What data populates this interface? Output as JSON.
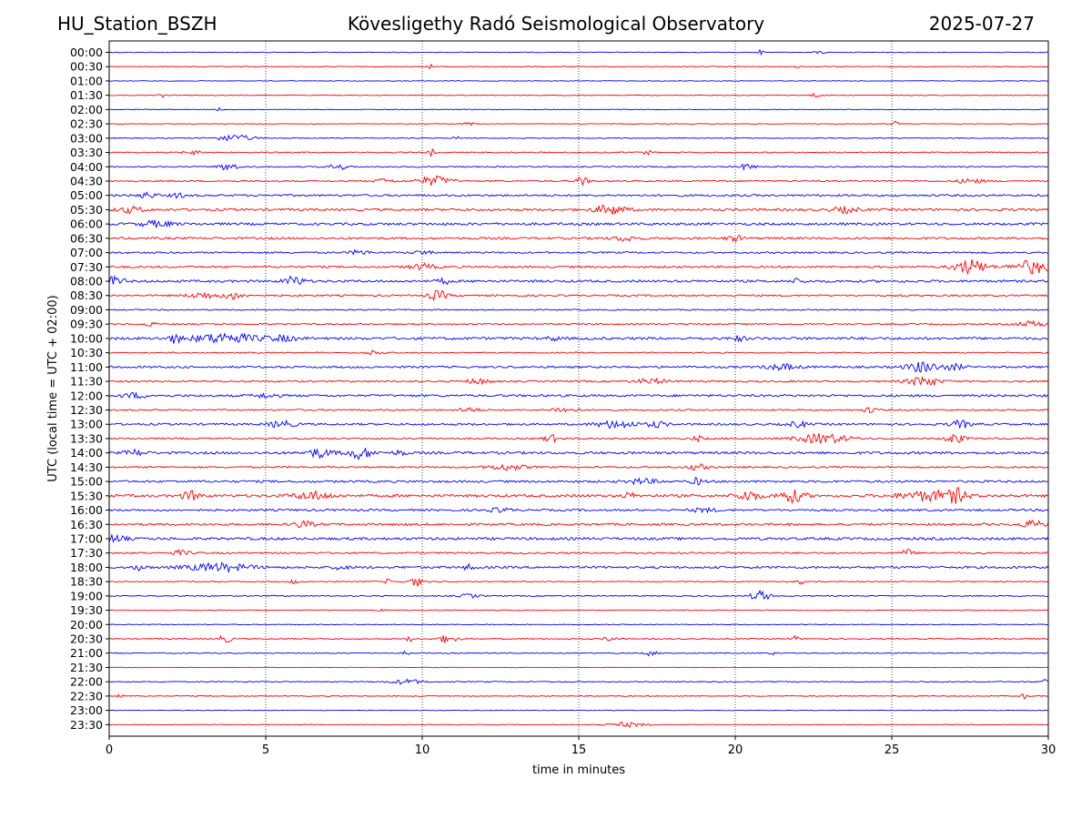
{
  "header": {
    "station": "HU_Station_BSZH",
    "title": "Kövesligethy Radó Seismological Observatory",
    "date": "2025-07-27"
  },
  "chart_data": {
    "type": "line",
    "title": "Kövesligethy Radó Seismological Observatory",
    "xlabel": "time in minutes",
    "ylabel": "UTC (local time = UTC + 02:00)",
    "xlim": [
      0,
      30
    ],
    "x_ticks": [
      0,
      5,
      10,
      15,
      20,
      25,
      30
    ],
    "grid": "vertical dotted lines at 5, 10, 15, 20, 25 minutes",
    "colors": {
      "even_row": "#0000ff",
      "odd_row": "#ff0000"
    },
    "rows": [
      {
        "label": "00:00",
        "noise": 0.12,
        "events": [
          {
            "t": 20.8,
            "a": 0.5,
            "w": 0.1
          },
          {
            "t": 22.7,
            "a": 0.3,
            "w": 0.2
          }
        ]
      },
      {
        "label": "00:30",
        "noise": 0.15,
        "events": [
          {
            "t": 10.3,
            "a": 0.5,
            "w": 0.1
          },
          {
            "t": 22.0,
            "a": 0.4,
            "w": 0.1
          }
        ]
      },
      {
        "label": "01:00",
        "noise": 0.12,
        "events": []
      },
      {
        "label": "01:30",
        "noise": 0.14,
        "events": [
          {
            "t": 1.7,
            "a": 0.4,
            "w": 0.1
          },
          {
            "t": 22.6,
            "a": 0.4,
            "w": 0.2
          }
        ]
      },
      {
        "label": "02:00",
        "noise": 0.12,
        "events": [
          {
            "t": 3.5,
            "a": 0.4,
            "w": 0.1
          }
        ]
      },
      {
        "label": "02:30",
        "noise": 0.12,
        "events": [
          {
            "t": 11.5,
            "a": 0.4,
            "w": 0.2
          },
          {
            "t": 25.1,
            "a": 0.6,
            "w": 0.1
          }
        ]
      },
      {
        "label": "03:00",
        "noise": 0.15,
        "events": [
          {
            "t": 4.0,
            "a": 0.7,
            "w": 0.6
          },
          {
            "t": 11.1,
            "a": 0.4,
            "w": 0.1
          }
        ]
      },
      {
        "label": "03:30",
        "noise": 0.2,
        "events": [
          {
            "t": 2.7,
            "a": 0.4,
            "w": 0.3
          },
          {
            "t": 10.3,
            "a": 0.7,
            "w": 0.1
          },
          {
            "t": 17.2,
            "a": 0.4,
            "w": 0.2
          }
        ]
      },
      {
        "label": "04:00",
        "noise": 0.22,
        "events": [
          {
            "t": 3.8,
            "a": 0.8,
            "w": 0.3
          },
          {
            "t": 7.3,
            "a": 0.6,
            "w": 0.3
          },
          {
            "t": 20.4,
            "a": 0.8,
            "w": 0.2
          }
        ]
      },
      {
        "label": "04:30",
        "noise": 0.25,
        "events": [
          {
            "t": 8.8,
            "a": 0.5,
            "w": 0.3
          },
          {
            "t": 10.4,
            "a": 1.0,
            "w": 0.5
          },
          {
            "t": 15.1,
            "a": 0.9,
            "w": 0.2
          },
          {
            "t": 27.5,
            "a": 0.5,
            "w": 0.4
          }
        ]
      },
      {
        "label": "05:00",
        "noise": 0.35,
        "events": [
          {
            "t": 1.2,
            "a": 0.6,
            "w": 0.3
          },
          {
            "t": 2.2,
            "a": 0.5,
            "w": 0.2
          }
        ]
      },
      {
        "label": "05:30",
        "noise": 0.4,
        "events": [
          {
            "t": 0.7,
            "a": 0.6,
            "w": 0.4
          },
          {
            "t": 16.0,
            "a": 1.0,
            "w": 0.5
          },
          {
            "t": 23.5,
            "a": 0.6,
            "w": 0.4
          }
        ]
      },
      {
        "label": "06:00",
        "noise": 0.42,
        "events": [
          {
            "t": 1.5,
            "a": 0.6,
            "w": 0.5
          }
        ]
      },
      {
        "label": "06:30",
        "noise": 0.38,
        "events": [
          {
            "t": 16.5,
            "a": 0.5,
            "w": 0.4
          },
          {
            "t": 20.0,
            "a": 0.5,
            "w": 0.3
          }
        ]
      },
      {
        "label": "07:00",
        "noise": 0.3,
        "events": [
          {
            "t": 8.0,
            "a": 0.5,
            "w": 0.3
          },
          {
            "t": 10.0,
            "a": 0.4,
            "w": 0.3
          }
        ]
      },
      {
        "label": "07:30",
        "noise": 0.35,
        "events": [
          {
            "t": 10.0,
            "a": 0.6,
            "w": 0.4
          },
          {
            "t": 27.5,
            "a": 1.5,
            "w": 0.5
          },
          {
            "t": 29.5,
            "a": 1.4,
            "w": 0.6
          }
        ]
      },
      {
        "label": "08:00",
        "noise": 0.4,
        "events": [
          {
            "t": 0.2,
            "a": 0.9,
            "w": 0.3
          },
          {
            "t": 5.9,
            "a": 1.0,
            "w": 0.3
          },
          {
            "t": 10.7,
            "a": 0.6,
            "w": 0.2
          },
          {
            "t": 22.0,
            "a": 0.5,
            "w": 0.2
          }
        ]
      },
      {
        "label": "08:30",
        "noise": 0.3,
        "events": [
          {
            "t": 3.0,
            "a": 0.6,
            "w": 0.5
          },
          {
            "t": 4.0,
            "a": 0.8,
            "w": 0.3
          },
          {
            "t": 10.5,
            "a": 1.0,
            "w": 0.3
          }
        ]
      },
      {
        "label": "09:00",
        "noise": 0.22,
        "events": []
      },
      {
        "label": "09:30",
        "noise": 0.25,
        "events": [
          {
            "t": 1.3,
            "a": 0.4,
            "w": 0.2
          },
          {
            "t": 29.5,
            "a": 0.6,
            "w": 0.5
          }
        ]
      },
      {
        "label": "10:00",
        "noise": 0.45,
        "events": [
          {
            "t": 2.1,
            "a": 0.8,
            "w": 0.2
          },
          {
            "t": 3.7,
            "a": 1.0,
            "w": 1.0
          },
          {
            "t": 5.5,
            "a": 0.5,
            "w": 0.5
          },
          {
            "t": 14.2,
            "a": 0.4,
            "w": 0.2
          },
          {
            "t": 20.1,
            "a": 0.5,
            "w": 0.2
          }
        ]
      },
      {
        "label": "10:30",
        "noise": 0.2,
        "events": [
          {
            "t": 8.5,
            "a": 0.5,
            "w": 0.3
          }
        ]
      },
      {
        "label": "11:00",
        "noise": 0.35,
        "events": [
          {
            "t": 21.5,
            "a": 0.6,
            "w": 0.5
          },
          {
            "t": 26.0,
            "a": 1.1,
            "w": 0.5
          },
          {
            "t": 27.0,
            "a": 0.6,
            "w": 0.3
          }
        ]
      },
      {
        "label": "11:30",
        "noise": 0.3,
        "events": [
          {
            "t": 11.8,
            "a": 0.5,
            "w": 0.4
          },
          {
            "t": 17.3,
            "a": 0.5,
            "w": 0.5
          },
          {
            "t": 26.0,
            "a": 1.0,
            "w": 0.5
          }
        ]
      },
      {
        "label": "12:00",
        "noise": 0.38,
        "events": [
          {
            "t": 0.8,
            "a": 0.5,
            "w": 0.4
          },
          {
            "t": 5.0,
            "a": 0.4,
            "w": 0.4
          }
        ]
      },
      {
        "label": "12:30",
        "noise": 0.28,
        "events": [
          {
            "t": 11.5,
            "a": 0.5,
            "w": 0.3
          },
          {
            "t": 14.5,
            "a": 0.5,
            "w": 0.4
          },
          {
            "t": 24.3,
            "a": 0.6,
            "w": 0.2
          }
        ]
      },
      {
        "label": "13:00",
        "noise": 0.35,
        "events": [
          {
            "t": 5.5,
            "a": 0.7,
            "w": 0.4
          },
          {
            "t": 16.2,
            "a": 0.8,
            "w": 0.6
          },
          {
            "t": 17.5,
            "a": 0.6,
            "w": 0.3
          },
          {
            "t": 22.0,
            "a": 0.6,
            "w": 0.3
          },
          {
            "t": 27.2,
            "a": 0.8,
            "w": 0.3
          }
        ]
      },
      {
        "label": "13:30",
        "noise": 0.3,
        "events": [
          {
            "t": 14.1,
            "a": 0.8,
            "w": 0.2
          },
          {
            "t": 18.8,
            "a": 0.5,
            "w": 0.2
          },
          {
            "t": 22.8,
            "a": 1.0,
            "w": 0.8
          },
          {
            "t": 27.0,
            "a": 1.0,
            "w": 0.3
          }
        ]
      },
      {
        "label": "14:00",
        "noise": 0.42,
        "events": [
          {
            "t": 0.8,
            "a": 0.6,
            "w": 0.3
          },
          {
            "t": 6.7,
            "a": 0.9,
            "w": 0.4
          },
          {
            "t": 8.0,
            "a": 1.2,
            "w": 0.4
          },
          {
            "t": 9.3,
            "a": 0.5,
            "w": 0.2
          }
        ]
      },
      {
        "label": "14:30",
        "noise": 0.3,
        "events": [
          {
            "t": 12.7,
            "a": 0.6,
            "w": 0.6
          },
          {
            "t": 18.8,
            "a": 0.6,
            "w": 0.3
          }
        ]
      },
      {
        "label": "15:00",
        "noise": 0.38,
        "events": [
          {
            "t": 17.0,
            "a": 0.5,
            "w": 0.5
          },
          {
            "t": 18.8,
            "a": 0.7,
            "w": 0.2
          }
        ]
      },
      {
        "label": "15:30",
        "noise": 0.45,
        "events": [
          {
            "t": 2.6,
            "a": 0.9,
            "w": 0.3
          },
          {
            "t": 6.5,
            "a": 0.8,
            "w": 0.6
          },
          {
            "t": 16.6,
            "a": 0.6,
            "w": 0.2
          },
          {
            "t": 20.4,
            "a": 1.0,
            "w": 0.4
          },
          {
            "t": 21.8,
            "a": 1.3,
            "w": 0.4
          },
          {
            "t": 26.2,
            "a": 1.0,
            "w": 0.9
          },
          {
            "t": 27.1,
            "a": 1.2,
            "w": 0.3
          }
        ]
      },
      {
        "label": "16:00",
        "noise": 0.35,
        "events": [
          {
            "t": 12.5,
            "a": 0.4,
            "w": 0.4
          },
          {
            "t": 19.0,
            "a": 0.4,
            "w": 0.4
          }
        ]
      },
      {
        "label": "16:30",
        "noise": 0.38,
        "events": [
          {
            "t": 6.2,
            "a": 0.7,
            "w": 0.3
          },
          {
            "t": 29.5,
            "a": 0.7,
            "w": 0.4
          }
        ]
      },
      {
        "label": "17:00",
        "noise": 0.45,
        "events": [
          {
            "t": 0.2,
            "a": 0.8,
            "w": 0.3
          }
        ]
      },
      {
        "label": "17:30",
        "noise": 0.3,
        "events": [
          {
            "t": 2.3,
            "a": 0.5,
            "w": 0.3
          },
          {
            "t": 25.5,
            "a": 0.7,
            "w": 0.2
          }
        ]
      },
      {
        "label": "18:00",
        "noise": 0.4,
        "events": [
          {
            "t": 1.0,
            "a": 0.6,
            "w": 0.2
          },
          {
            "t": 3.5,
            "a": 0.8,
            "w": 1.0
          },
          {
            "t": 7.4,
            "a": 0.6,
            "w": 0.2
          },
          {
            "t": 11.5,
            "a": 0.5,
            "w": 0.2
          }
        ]
      },
      {
        "label": "18:30",
        "noise": 0.2,
        "events": [
          {
            "t": 5.9,
            "a": 0.6,
            "w": 0.1
          },
          {
            "t": 8.9,
            "a": 0.5,
            "w": 0.1
          },
          {
            "t": 9.8,
            "a": 1.0,
            "w": 0.2
          },
          {
            "t": 22.1,
            "a": 0.5,
            "w": 0.1
          }
        ]
      },
      {
        "label": "19:00",
        "noise": 0.2,
        "events": [
          {
            "t": 11.5,
            "a": 0.4,
            "w": 0.3
          },
          {
            "t": 20.8,
            "a": 1.1,
            "w": 0.3
          }
        ]
      },
      {
        "label": "19:30",
        "noise": 0.15,
        "events": [
          {
            "t": 8.7,
            "a": 0.4,
            "w": 0.1
          }
        ]
      },
      {
        "label": "20:00",
        "noise": 0.12,
        "events": []
      },
      {
        "label": "20:30",
        "noise": 0.2,
        "events": [
          {
            "t": 3.7,
            "a": 0.8,
            "w": 0.2
          },
          {
            "t": 9.6,
            "a": 0.6,
            "w": 0.1
          },
          {
            "t": 10.8,
            "a": 0.8,
            "w": 0.3
          },
          {
            "t": 16.0,
            "a": 0.5,
            "w": 0.2
          },
          {
            "t": 21.9,
            "a": 0.8,
            "w": 0.1
          }
        ]
      },
      {
        "label": "21:00",
        "noise": 0.18,
        "events": [
          {
            "t": 9.5,
            "a": 0.5,
            "w": 0.1
          },
          {
            "t": 17.3,
            "a": 0.5,
            "w": 0.2
          },
          {
            "t": 21.2,
            "a": 0.4,
            "w": 0.1
          }
        ]
      },
      {
        "label": "21:30",
        "noise": 0.1,
        "events": []
      },
      {
        "label": "22:00",
        "noise": 0.18,
        "events": [
          {
            "t": 9.5,
            "a": 0.5,
            "w": 0.5
          },
          {
            "t": 29.9,
            "a": 0.6,
            "w": 0.1
          }
        ]
      },
      {
        "label": "22:30",
        "noise": 0.15,
        "events": [
          {
            "t": 0.3,
            "a": 0.8,
            "w": 0.1
          },
          {
            "t": 29.2,
            "a": 0.6,
            "w": 0.1
          }
        ]
      },
      {
        "label": "23:00",
        "noise": 0.1,
        "events": []
      },
      {
        "label": "23:30",
        "noise": 0.12,
        "events": [
          {
            "t": 16.5,
            "a": 0.5,
            "w": 0.6
          }
        ]
      }
    ]
  }
}
